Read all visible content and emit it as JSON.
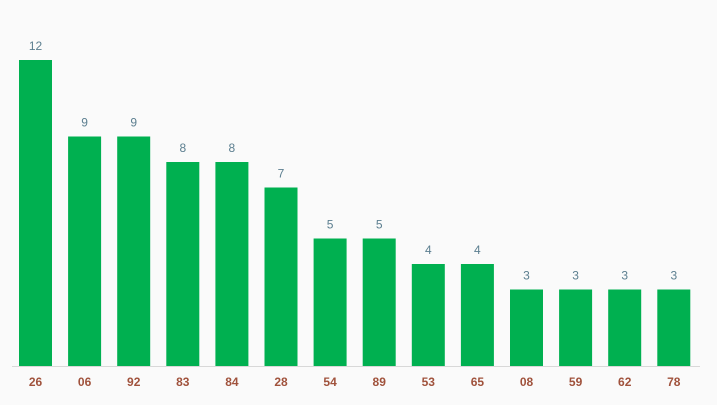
{
  "chart_data": {
    "type": "bar",
    "categories": [
      "26",
      "06",
      "92",
      "83",
      "84",
      "28",
      "54",
      "89",
      "53",
      "65",
      "08",
      "59",
      "62",
      "78"
    ],
    "values": [
      12,
      9,
      9,
      8,
      8,
      7,
      5,
      5,
      4,
      4,
      3,
      3,
      3,
      3
    ],
    "color": "#00b050"
  }
}
